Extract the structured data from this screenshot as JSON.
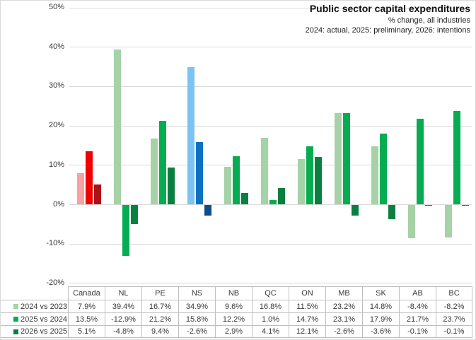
{
  "header": {
    "title": "Public sector capital expenditures",
    "subtitle": "% change, all industries",
    "note": "2024: actual, 2025: preliminary, 2026: intentions"
  },
  "chart_data": {
    "type": "bar",
    "title": "Public sector capital expenditures",
    "subtitle": "% change, all industries",
    "note": "2024: actual, 2025: preliminary, 2026: intentions",
    "categories": [
      "Canada",
      "NL",
      "PE",
      "NS",
      "NB",
      "QC",
      "ON",
      "MB",
      "SK",
      "AB",
      "BC"
    ],
    "series": [
      {
        "name": "2024 vs 2023",
        "values": [
          7.9,
          39.4,
          16.7,
          34.9,
          9.6,
          16.8,
          11.5,
          23.2,
          14.8,
          -8.4,
          -8.2
        ]
      },
      {
        "name": "2025 vs 2024",
        "values": [
          13.5,
          -12.9,
          21.2,
          15.8,
          12.2,
          1.0,
          14.7,
          23.1,
          17.9,
          21.7,
          23.7
        ]
      },
      {
        "name": "2026 vs 2025",
        "values": [
          5.1,
          -4.8,
          9.4,
          -2.6,
          2.9,
          4.1,
          12.1,
          -2.6,
          -3.6,
          -0.1,
          -0.1
        ]
      }
    ],
    "ylim": [
      -20,
      50
    ],
    "ytick_step": 10,
    "ytick_labels": [
      "50%",
      "40%",
      "30%",
      "20%",
      "10%",
      "0%",
      "-10%",
      "-20%"
    ],
    "grid": true,
    "legend_position": "left column of data table",
    "series_colors": {
      "default": [
        "#A5D2A6",
        "#05AC52",
        "#0A8040"
      ],
      "Canada": [
        "#F9A0A3",
        "#F20000",
        "#AE1117"
      ],
      "NS": [
        "#7CC3F3",
        "#0A72C0",
        "#0B4E8A"
      ]
    }
  },
  "table": {
    "columns": [
      "Canada",
      "NL",
      "PE",
      "NS",
      "NB",
      "QC",
      "ON",
      "MB",
      "SK",
      "AB",
      "BC"
    ],
    "rows": [
      {
        "label": "2024 vs 2023",
        "values": [
          "7.9%",
          "39.4%",
          "16.7%",
          "34.9%",
          "9.6%",
          "16.8%",
          "11.5%",
          "23.2%",
          "14.8%",
          "-8.4%",
          "-8.2%"
        ]
      },
      {
        "label": "2025 vs 2024",
        "values": [
          "13.5%",
          "-12.9%",
          "21.2%",
          "15.8%",
          "12.2%",
          "1.0%",
          "14.7%",
          "23.1%",
          "17.9%",
          "21.7%",
          "23.7%"
        ]
      },
      {
        "label": "2026 vs 2025",
        "values": [
          "5.1%",
          "-4.8%",
          "9.4%",
          "-2.6%",
          "2.9%",
          "4.1%",
          "12.1%",
          "-2.6%",
          "-3.6%",
          "-0.1%",
          "-0.1%"
        ]
      }
    ]
  },
  "colors": {
    "gridline": "#D9D9D9",
    "table_border": "#BFBFBF",
    "text": "#383838",
    "title_text": "#111111"
  }
}
